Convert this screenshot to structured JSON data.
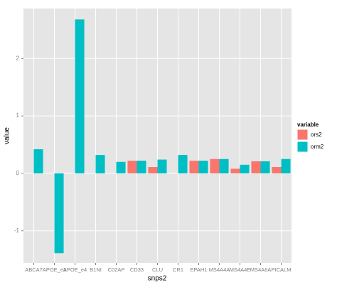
{
  "chart_data": {
    "type": "bar",
    "x_label": "snps2",
    "y_label": "value",
    "legend_title": "variable",
    "categories": [
      "ABCA7",
      "APOE_e2",
      "APOE_e4",
      "B1NI",
      "C02AP",
      "CD33",
      "CLU",
      "CR1",
      "EPAH1",
      "MS4A4A",
      "MS4A4E",
      "MS4A6A",
      "PICALM"
    ],
    "series": [
      {
        "name": "ors2",
        "color": "#F8766D",
        "values": [
          null,
          null,
          null,
          null,
          null,
          0.22,
          0.11,
          null,
          0.22,
          0.25,
          0.08,
          0.21,
          0.11
        ]
      },
      {
        "name": "orm2",
        "color": "#00BFC4",
        "values": [
          0.42,
          -1.39,
          2.68,
          0.32,
          0.2,
          0.22,
          0.24,
          0.32,
          0.22,
          0.25,
          0.15,
          0.21,
          0.25
        ]
      }
    ],
    "ylim": [
      -1.56,
      2.87
    ],
    "yticks": [
      -1,
      0,
      1,
      2
    ],
    "grid": true,
    "legend": "right"
  }
}
